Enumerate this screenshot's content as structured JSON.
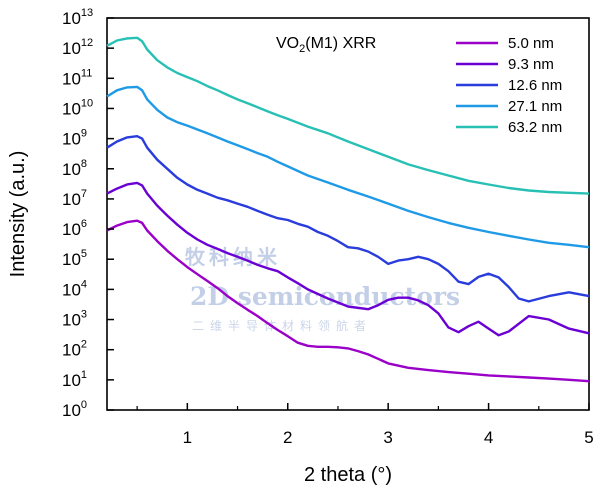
{
  "chart_data": {
    "type": "line",
    "title": "VO2(M1) XRR",
    "title_parts": {
      "base": "VO",
      "sub": "2",
      "rest": "(M1) XRR"
    },
    "xlabel": "2 theta (°)",
    "ylabel": "Intensity (a.u.)",
    "xlim": [
      0.2,
      5.0
    ],
    "ylim": [
      1,
      10000000000000.0
    ],
    "yscale": "log",
    "grid": false,
    "legend_position": "top-right",
    "x_ticks": [
      1,
      2,
      3,
      4,
      5
    ],
    "y_ticks": [
      {
        "base": "10",
        "exp": "0"
      },
      {
        "base": "10",
        "exp": "1"
      },
      {
        "base": "10",
        "exp": "2"
      },
      {
        "base": "10",
        "exp": "3"
      },
      {
        "base": "10",
        "exp": "4"
      },
      {
        "base": "10",
        "exp": "5"
      },
      {
        "base": "10",
        "exp": "6"
      },
      {
        "base": "10",
        "exp": "7"
      },
      {
        "base": "10",
        "exp": "8"
      },
      {
        "base": "10",
        "exp": "9"
      },
      {
        "base": "10",
        "exp": "10"
      },
      {
        "base": "10",
        "exp": "11"
      },
      {
        "base": "10",
        "exp": "12"
      },
      {
        "base": "10",
        "exp": "13"
      }
    ],
    "series": [
      {
        "name": "5.0 nm",
        "color": "#9a00c8",
        "x": [
          0.2,
          0.3,
          0.4,
          0.5,
          0.55,
          0.6,
          0.7,
          0.8,
          0.9,
          1.0,
          1.1,
          1.2,
          1.3,
          1.4,
          1.5,
          1.6,
          1.7,
          1.8,
          1.9,
          2.0,
          2.1,
          2.2,
          2.3,
          2.4,
          2.5,
          2.6,
          2.7,
          2.8,
          2.9,
          3.0,
          3.2,
          3.4,
          3.6,
          3.8,
          4.0,
          4.2,
          4.4,
          4.6,
          4.8,
          5.0
        ],
        "y": [
          900000.0,
          1300000.0,
          1700000.0,
          1900000.0,
          1600000.0,
          900000.0,
          400000.0,
          190000.0,
          100000.0,
          55000.0,
          32000.0,
          19000.0,
          11000.0,
          6000.0,
          3500.0,
          2100.0,
          1300.0,
          750.0,
          450.0,
          280.0,
          170.0,
          135.0,
          125.0,
          125.0,
          120.0,
          110.0,
          90.0,
          70.0,
          50.0,
          35.0,
          25.0,
          21.0,
          18.0,
          16.0,
          14.0,
          13.0,
          12.0,
          11.0,
          10.0,
          9
        ]
      },
      {
        "name": "9.3 nm",
        "color": "#6a00d4",
        "x": [
          0.2,
          0.3,
          0.4,
          0.5,
          0.55,
          0.6,
          0.7,
          0.8,
          0.9,
          1.0,
          1.1,
          1.2,
          1.3,
          1.4,
          1.5,
          1.6,
          1.7,
          1.8,
          1.9,
          2.0,
          2.1,
          2.2,
          2.4,
          2.6,
          2.8,
          2.9,
          3.0,
          3.1,
          3.2,
          3.3,
          3.4,
          3.5,
          3.6,
          3.7,
          3.8,
          3.9,
          4.0,
          4.1,
          4.2,
          4.4,
          4.6,
          4.8,
          5.0
        ],
        "y": [
          15000000.0,
          22000000.0,
          30000000.0,
          34000000.0,
          28000000.0,
          15000000.0,
          6000000.0,
          2800000.0,
          1400000.0,
          750000.0,
          450000.0,
          300000.0,
          220000.0,
          160000.0,
          120000.0,
          90000.0,
          65000.0,
          50000.0,
          40000.0,
          25000.0,
          16000.0,
          10000.0,
          5000.0,
          2700.0,
          2200.0,
          3000.0,
          4500.0,
          5300.0,
          5300.0,
          4300.0,
          3000.0,
          1600.0,
          550.0,
          380.0,
          600.0,
          850.0,
          500.0,
          300.0,
          400.0,
          1300.0,
          1000.0,
          500.0,
          350.0
        ]
      },
      {
        "name": "12.6 nm",
        "color": "#2a3cdc",
        "x": [
          0.2,
          0.3,
          0.4,
          0.5,
          0.55,
          0.6,
          0.7,
          0.8,
          0.9,
          1.0,
          1.1,
          1.2,
          1.3,
          1.4,
          1.5,
          1.6,
          1.7,
          1.8,
          1.9,
          2.0,
          2.1,
          2.2,
          2.3,
          2.4,
          2.5,
          2.6,
          2.7,
          2.8,
          2.9,
          3.0,
          3.1,
          3.2,
          3.3,
          3.4,
          3.5,
          3.6,
          3.7,
          3.8,
          3.9,
          4.0,
          4.1,
          4.2,
          4.3,
          4.4,
          4.6,
          4.8,
          5.0
        ],
        "y": [
          500000000.0,
          800000000.0,
          1100000000.0,
          1200000000.0,
          1000000000.0,
          500000000.0,
          200000000.0,
          100000000.0,
          50000000.0,
          30000000.0,
          20000000.0,
          15000000.0,
          11000000.0,
          9000000.0,
          7000000.0,
          5500000.0,
          4000000.0,
          3000000.0,
          2300000.0,
          2000000.0,
          1500000.0,
          1200000.0,
          800000.0,
          600000.0,
          400000.0,
          250000.0,
          230000.0,
          180000.0,
          120000.0,
          70000.0,
          90000.0,
          100000.0,
          120000.0,
          100000.0,
          70000.0,
          40000.0,
          18000.0,
          15000.0,
          26000.0,
          33000.0,
          25000.0,
          12000.0,
          5000.0,
          4000.0,
          6000.0,
          8000.0,
          6000.0
        ]
      },
      {
        "name": "27.1 nm",
        "color": "#1f9ae6",
        "x": [
          0.2,
          0.3,
          0.4,
          0.5,
          0.55,
          0.6,
          0.7,
          0.8,
          0.9,
          1.0,
          1.1,
          1.2,
          1.3,
          1.4,
          1.5,
          1.6,
          1.7,
          1.8,
          1.9,
          2.0,
          2.2,
          2.4,
          2.6,
          2.8,
          3.0,
          3.2,
          3.4,
          3.6,
          3.8,
          4.0,
          4.2,
          4.4,
          4.6,
          4.8,
          5.0
        ],
        "y": [
          25000000000.0,
          40000000000.0,
          50000000000.0,
          52000000000.0,
          40000000000.0,
          20000000000.0,
          9000000000.0,
          5000000000.0,
          3500000000.0,
          2700000000.0,
          2000000000.0,
          1500000000.0,
          1100000000.0,
          800000000.0,
          600000000.0,
          450000000.0,
          330000000.0,
          250000000.0,
          170000000.0,
          120000000.0,
          60000000.0,
          35000000.0,
          20000000.0,
          12000000.0,
          7000000.0,
          4000000.0,
          2500000.0,
          1600000.0,
          1100000.0,
          800000.0,
          600000.0,
          450000.0,
          350000.0,
          300000.0,
          250000.0
        ]
      },
      {
        "name": "63.2 nm",
        "color": "#28c0b4",
        "x": [
          0.2,
          0.3,
          0.4,
          0.5,
          0.55,
          0.6,
          0.7,
          0.8,
          0.9,
          1.0,
          1.1,
          1.2,
          1.3,
          1.4,
          1.5,
          1.6,
          1.7,
          1.8,
          1.9,
          2.0,
          2.2,
          2.4,
          2.6,
          2.8,
          3.0,
          3.2,
          3.4,
          3.6,
          3.8,
          4.0,
          4.2,
          4.4,
          4.6,
          4.8,
          5.0
        ],
        "y": [
          1200000000000.0,
          1800000000000.0,
          2100000000000.0,
          2200000000000.0,
          1700000000000.0,
          900000000000.0,
          400000000000.0,
          230000000000.0,
          150000000000.0,
          110000000000.0,
          80000000000.0,
          55000000000.0,
          40000000000.0,
          28000000000.0,
          20000000000.0,
          15000000000.0,
          11000000000.0,
          8000000000.0,
          6000000000.0,
          4500000000.0,
          2500000000.0,
          1500000000.0,
          800000000.0,
          450000000.0,
          250000000.0,
          140000000.0,
          90000000.0,
          60000000.0,
          40000000.0,
          30000000.0,
          23000000.0,
          19000000.0,
          17000000.0,
          16000000.0,
          15000000.0
        ]
      }
    ]
  },
  "watermark": {
    "line1": "牧科纳米",
    "line2": "2D semiconductors",
    "line3": "二维半导体材料领航者"
  }
}
